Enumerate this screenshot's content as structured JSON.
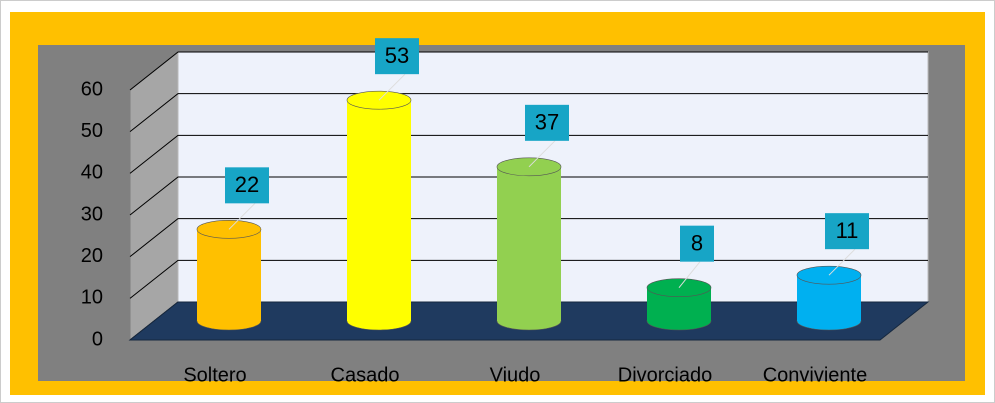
{
  "chart_data": {
    "type": "bar3d",
    "categories": [
      "Soltero",
      "Casado",
      "Viudo",
      "Divorciado",
      "Conviviente"
    ],
    "values": [
      22,
      53,
      37,
      8,
      11
    ],
    "colors": [
      "#FFC000",
      "#FFFF00",
      "#92D050",
      "#00B050",
      "#00B0F0"
    ],
    "ylim": [
      0,
      60
    ],
    "yticks": [
      0,
      10,
      20,
      30,
      40,
      50,
      60
    ],
    "grid": true
  }
}
